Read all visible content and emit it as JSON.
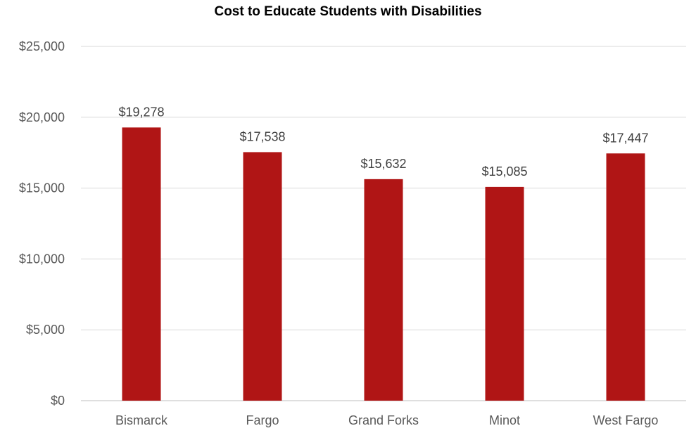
{
  "chart_data": {
    "type": "bar",
    "title": "Cost to Educate Students with Disabilities",
    "categories": [
      "Bismarck",
      "Fargo",
      "Grand Forks",
      "Minot",
      "West Fargo"
    ],
    "values": [
      19278,
      17538,
      15632,
      15085,
      17447
    ],
    "data_labels": [
      "$19,278",
      "$17,538",
      "$15,632",
      "$15,085",
      "$17,447"
    ],
    "ylim": [
      0,
      25000
    ],
    "yticks": [
      0,
      5000,
      10000,
      15000,
      20000,
      25000
    ],
    "ytick_labels": [
      "$0",
      "$5,000",
      "$10,000",
      "$15,000",
      "$20,000",
      "$25,000"
    ],
    "xlabel": "",
    "ylabel": "",
    "grid": true,
    "legend": "none",
    "colors": {
      "bar": "#B01515",
      "grid": "#D9D9D9",
      "axis": "#BFBFBF"
    }
  }
}
